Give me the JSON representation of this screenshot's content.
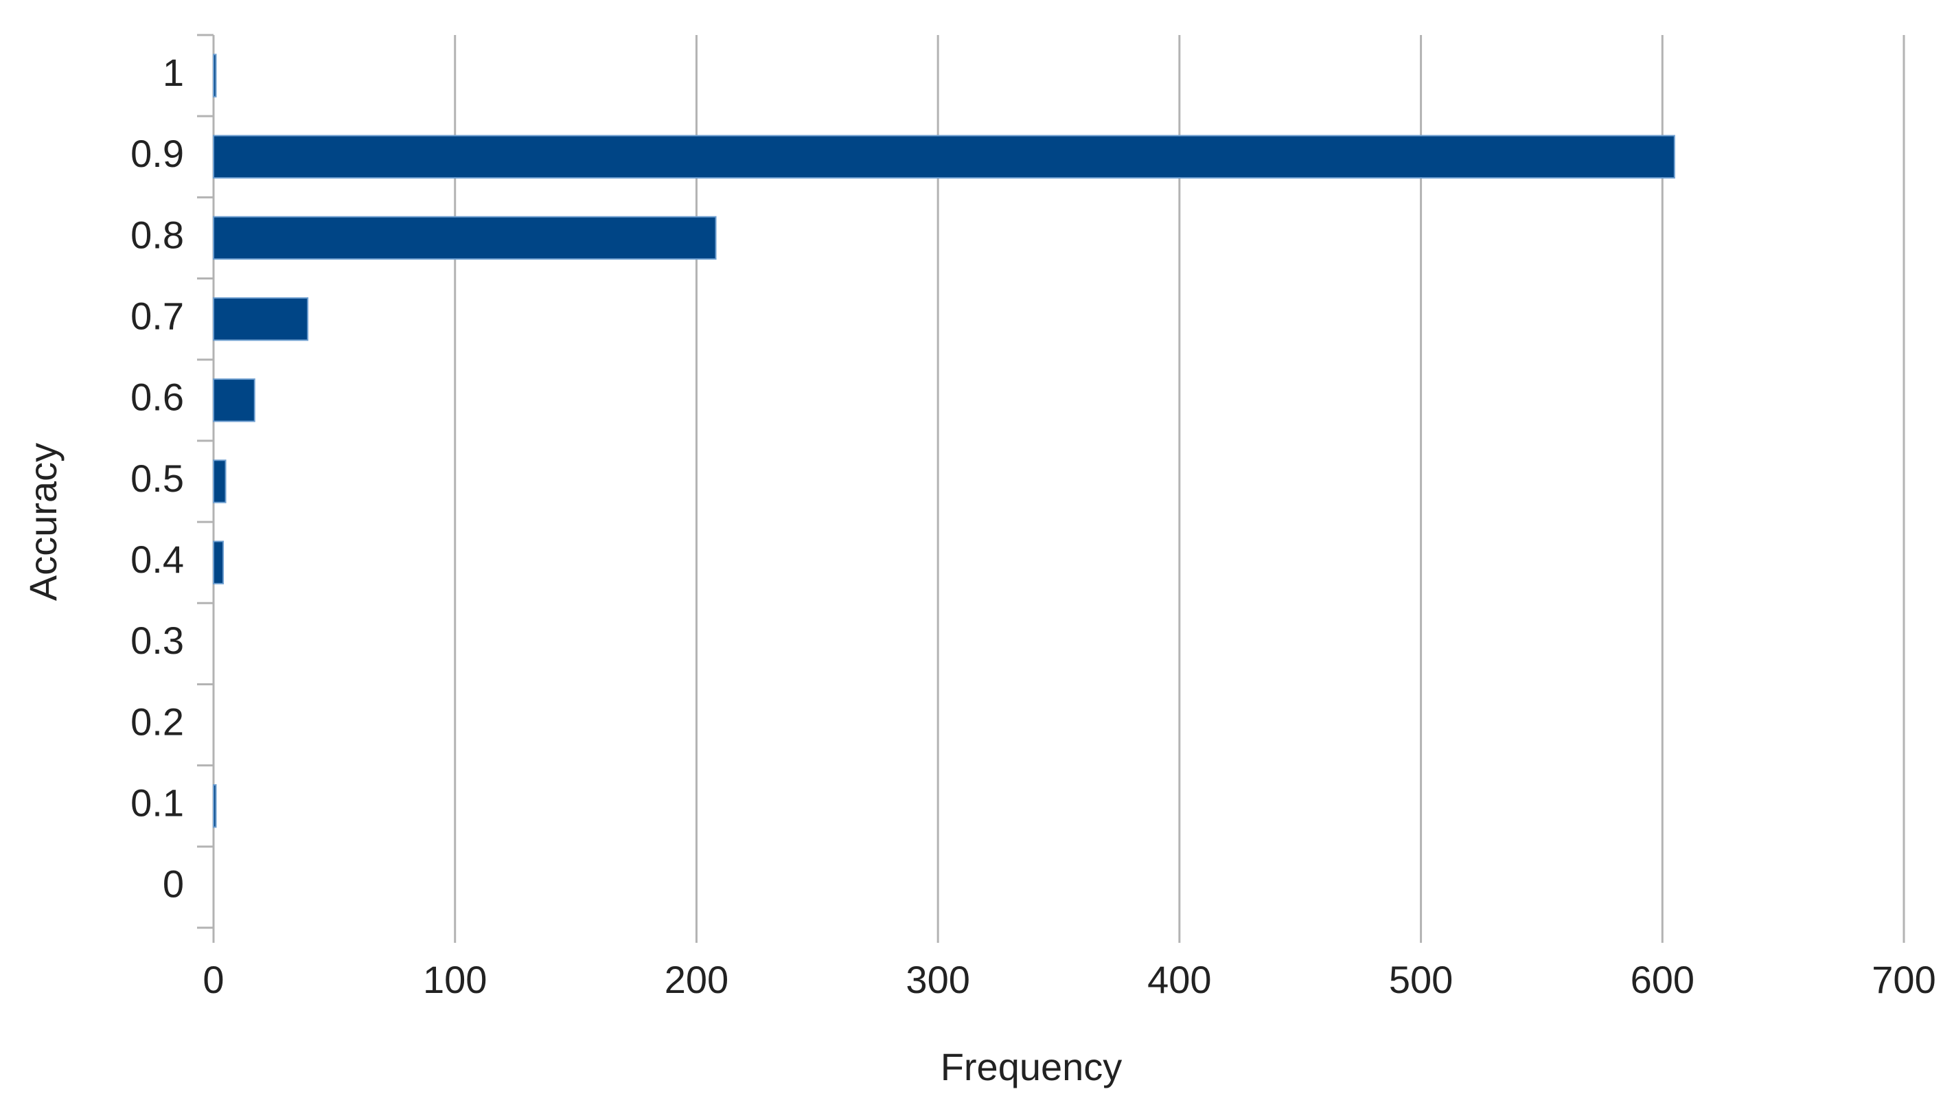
{
  "chart_data": {
    "type": "bar",
    "orientation": "horizontal",
    "x_label": "Frequency",
    "y_label": "Accuracy",
    "categories": [
      "0",
      "0.1",
      "0.2",
      "0.3",
      "0.4",
      "0.5",
      "0.6",
      "0.7",
      "0.8",
      "0.9",
      "1"
    ],
    "values": [
      0,
      1,
      0,
      0,
      4,
      5,
      17,
      39,
      208,
      605,
      1
    ],
    "color": "#004586",
    "xlim": [
      0,
      700
    ],
    "xticks": [
      0,
      100,
      200,
      300,
      400,
      500,
      600,
      700
    ],
    "grid": true
  }
}
